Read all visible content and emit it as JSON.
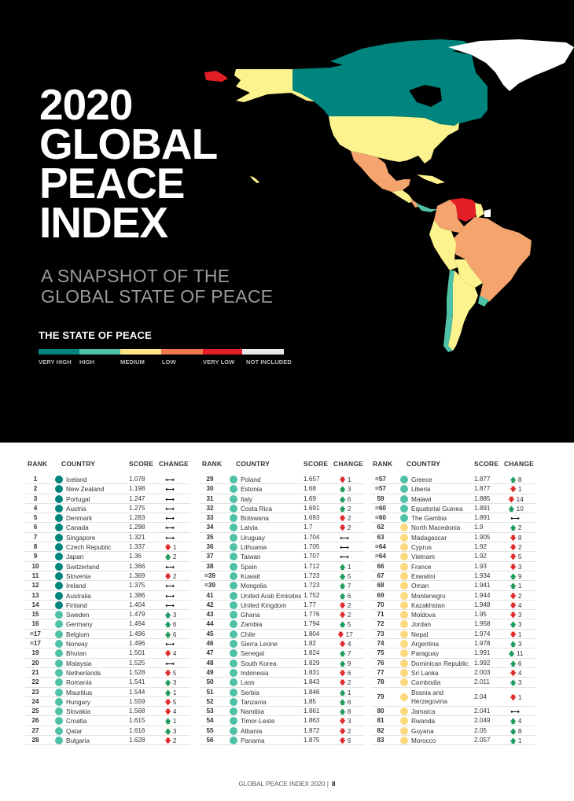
{
  "header": {
    "title_lines": [
      "2020",
      "GLOBAL",
      "PEACE",
      "INDEX"
    ],
    "subtitle_lines": [
      "A SNAPSHOT OF THE",
      "GLOBAL STATE OF PEACE"
    ]
  },
  "legend": {
    "title": "THE STATE OF PEACE",
    "items": [
      {
        "label": "VERY HIGH",
        "color": "#00857e"
      },
      {
        "label": "HIGH",
        "color": "#4fc1a6"
      },
      {
        "label": "MEDIUM",
        "color": "#fde586"
      },
      {
        "label": "LOW",
        "color": "#f4784f"
      },
      {
        "label": "VERY LOW",
        "color": "#e21f26"
      },
      {
        "label": "NOT INCLUDED",
        "color": "#e8e8e8"
      }
    ]
  },
  "colors": {
    "very_high": "#00857e",
    "high": "#4fc1a6",
    "medium": "#fbd97c",
    "low": "#f4a46c",
    "very_low": "#e21f26",
    "not_included": "#ffffff",
    "arrow_up": "#1e9a5c",
    "arrow_down": "#e0292a"
  },
  "table": {
    "headers": {
      "rank": "RANK",
      "country": "COUNTRY",
      "score": "SCORE",
      "change": "CHANGE"
    },
    "columns": [
      [
        {
          "rank": "1",
          "country": "Iceland",
          "score": "1.078",
          "dir": "flat",
          "change": ""
        },
        {
          "rank": "2",
          "country": "New Zealand",
          "score": "1.198",
          "dir": "flat",
          "change": ""
        },
        {
          "rank": "3",
          "country": "Portugal",
          "score": "1.247",
          "dir": "flat",
          "change": ""
        },
        {
          "rank": "4",
          "country": "Austria",
          "score": "1.275",
          "dir": "flat",
          "change": ""
        },
        {
          "rank": "5",
          "country": "Denmark",
          "score": "1.283",
          "dir": "flat",
          "change": ""
        },
        {
          "rank": "6",
          "country": "Canada",
          "score": "1.298",
          "dir": "flat",
          "change": ""
        },
        {
          "rank": "7",
          "country": "Singapore",
          "score": "1.321",
          "dir": "flat",
          "change": ""
        },
        {
          "rank": "8",
          "country": "Czech Republic",
          "score": "1.337",
          "dir": "down",
          "change": "1"
        },
        {
          "rank": "9",
          "country": "Japan",
          "score": "1.36",
          "dir": "up",
          "change": "2"
        },
        {
          "rank": "10",
          "country": "Switzerland",
          "score": "1.366",
          "dir": "flat",
          "change": ""
        },
        {
          "rank": "11",
          "country": "Slovenia",
          "score": "1.369",
          "dir": "down",
          "change": "2"
        },
        {
          "rank": "12",
          "country": "Ireland",
          "score": "1.375",
          "dir": "flat",
          "change": ""
        },
        {
          "rank": "13",
          "country": "Australia",
          "score": "1.386",
          "dir": "flat",
          "change": ""
        },
        {
          "rank": "14",
          "country": "Finland",
          "score": "1.404",
          "dir": "flat",
          "change": ""
        },
        {
          "rank": "15",
          "country": "Sweden",
          "score": "1.479",
          "dir": "up",
          "change": "3"
        },
        {
          "rank": "16",
          "country": "Germany",
          "score": "1.494",
          "dir": "up",
          "change": "6"
        },
        {
          "rank": "=17",
          "country": "Belgium",
          "score": "1.496",
          "dir": "up",
          "change": "6"
        },
        {
          "rank": "=17",
          "country": "Norway",
          "score": "1.496",
          "dir": "flat",
          "change": ""
        },
        {
          "rank": "19",
          "country": "Bhutan",
          "score": "1.501",
          "dir": "down",
          "change": "4"
        },
        {
          "rank": "20",
          "country": "Malaysia",
          "score": "1.525",
          "dir": "flat",
          "change": ""
        },
        {
          "rank": "21",
          "country": "Netherlands",
          "score": "1.528",
          "dir": "down",
          "change": "5"
        },
        {
          "rank": "22",
          "country": "Romania",
          "score": "1.541",
          "dir": "up",
          "change": "3"
        },
        {
          "rank": "23",
          "country": "Mauritius",
          "score": "1.544",
          "dir": "up",
          "change": "1"
        },
        {
          "rank": "24",
          "country": "Hungary",
          "score": "1.559",
          "dir": "down",
          "change": "5"
        },
        {
          "rank": "25",
          "country": "Slovakia",
          "score": "1.568",
          "dir": "down",
          "change": "4"
        },
        {
          "rank": "26",
          "country": "Croatia",
          "score": "1.615",
          "dir": "up",
          "change": "1"
        },
        {
          "rank": "27",
          "country": "Qatar",
          "score": "1.616",
          "dir": "up",
          "change": "3"
        },
        {
          "rank": "28",
          "country": "Bulgaria",
          "score": "1.628",
          "dir": "down",
          "change": "2"
        }
      ],
      [
        {
          "rank": "29",
          "country": "Poland",
          "score": "1.657",
          "dir": "down",
          "change": "1"
        },
        {
          "rank": "30",
          "country": "Estonia",
          "score": "1.68",
          "dir": "up",
          "change": "3"
        },
        {
          "rank": "31",
          "country": "Italy",
          "score": "1.69",
          "dir": "up",
          "change": "6"
        },
        {
          "rank": "32",
          "country": "Costa Rica",
          "score": "1.691",
          "dir": "up",
          "change": "2"
        },
        {
          "rank": "33",
          "country": "Botswana",
          "score": "1.693",
          "dir": "down",
          "change": "2"
        },
        {
          "rank": "34",
          "country": "Latvia",
          "score": "1.7",
          "dir": "down",
          "change": "2"
        },
        {
          "rank": "35",
          "country": "Uruguay",
          "score": "1.704",
          "dir": "flat",
          "change": ""
        },
        {
          "rank": "36",
          "country": "Lithuania",
          "score": "1.705",
          "dir": "flat",
          "change": ""
        },
        {
          "rank": "37",
          "country": "Taiwan",
          "score": "1.707",
          "dir": "flat",
          "change": ""
        },
        {
          "rank": "38",
          "country": "Spain",
          "score": "1.712",
          "dir": "up",
          "change": "1"
        },
        {
          "rank": "=39",
          "country": "Kuwait",
          "score": "1.723",
          "dir": "up",
          "change": "5"
        },
        {
          "rank": "=39",
          "country": "Mongolia",
          "score": "1.723",
          "dir": "up",
          "change": "7"
        },
        {
          "rank": "41",
          "country": "United Arab Emirates",
          "score": "1.752",
          "dir": "up",
          "change": "6"
        },
        {
          "rank": "42",
          "country": "United Kingdom",
          "score": "1.77",
          "dir": "down",
          "change": "2"
        },
        {
          "rank": "43",
          "country": "Ghana",
          "score": "1.776",
          "dir": "down",
          "change": "2"
        },
        {
          "rank": "44",
          "country": "Zambia",
          "score": "1.794",
          "dir": "up",
          "change": "5"
        },
        {
          "rank": "45",
          "country": "Chile",
          "score": "1.804",
          "dir": "down",
          "change": "17"
        },
        {
          "rank": "46",
          "country": "Sierra Leone",
          "score": "1.82",
          "dir": "down",
          "change": "4"
        },
        {
          "rank": "47",
          "country": "Senegal",
          "score": "1.824",
          "dir": "up",
          "change": "7"
        },
        {
          "rank": "48",
          "country": "South Korea",
          "score": "1.829",
          "dir": "up",
          "change": "9"
        },
        {
          "rank": "49",
          "country": "Indonesia",
          "score": "1.831",
          "dir": "down",
          "change": "6"
        },
        {
          "rank": "50",
          "country": "Laos",
          "score": "1.843",
          "dir": "down",
          "change": "2"
        },
        {
          "rank": "51",
          "country": "Serbia",
          "score": "1.846",
          "dir": "up",
          "change": "1"
        },
        {
          "rank": "52",
          "country": "Tanzania",
          "score": "1.85",
          "dir": "up",
          "change": "6"
        },
        {
          "rank": "53",
          "country": "Namibia",
          "score": "1.861",
          "dir": "up",
          "change": "8"
        },
        {
          "rank": "54",
          "country": "Timor-Leste",
          "score": "1.863",
          "dir": "down",
          "change": "3"
        },
        {
          "rank": "55",
          "country": "Albania",
          "score": "1.872",
          "dir": "down",
          "change": "2"
        },
        {
          "rank": "56",
          "country": "Panama",
          "score": "1.875",
          "dir": "down",
          "change": "6"
        }
      ],
      [
        {
          "rank": "=57",
          "country": "Greece",
          "score": "1.877",
          "dir": "up",
          "change": "8",
          "level": "high"
        },
        {
          "rank": "=57",
          "country": "Liberia",
          "score": "1.877",
          "dir": "down",
          "change": "1",
          "level": "high"
        },
        {
          "rank": "59",
          "country": "Malawi",
          "score": "1.885",
          "dir": "down",
          "change": "14",
          "level": "high"
        },
        {
          "rank": "=60",
          "country": "Equatorial Guinea",
          "score": "1.891",
          "dir": "up",
          "change": "10",
          "level": "high"
        },
        {
          "rank": "=60",
          "country": "The Gambia",
          "score": "1.891",
          "dir": "flat",
          "change": "",
          "level": "high"
        },
        {
          "rank": "62",
          "country": "North Macedonia",
          "score": "1.9",
          "dir": "up",
          "change": "2",
          "level": "medium"
        },
        {
          "rank": "63",
          "country": "Madagascar",
          "score": "1.905",
          "dir": "down",
          "change": "8",
          "level": "medium"
        },
        {
          "rank": "=64",
          "country": "Cyprus",
          "score": "1.92",
          "dir": "down",
          "change": "2",
          "level": "medium"
        },
        {
          "rank": "=64",
          "country": "Vietnam",
          "score": "1.92",
          "dir": "down",
          "change": "5",
          "level": "medium"
        },
        {
          "rank": "66",
          "country": "France",
          "score": "1.93",
          "dir": "down",
          "change": "3",
          "level": "medium"
        },
        {
          "rank": "67",
          "country": "Eswatini",
          "score": "1.934",
          "dir": "up",
          "change": "9",
          "level": "medium"
        },
        {
          "rank": "68",
          "country": "Oman",
          "score": "1.941",
          "dir": "up",
          "change": "1",
          "level": "medium"
        },
        {
          "rank": "69",
          "country": "Montenegro",
          "score": "1.944",
          "dir": "down",
          "change": "2",
          "level": "medium"
        },
        {
          "rank": "70",
          "country": "Kazakhstan",
          "score": "1.948",
          "dir": "down",
          "change": "4",
          "level": "medium"
        },
        {
          "rank": "71",
          "country": "Moldova",
          "score": "1.95",
          "dir": "down",
          "change": "3",
          "level": "medium"
        },
        {
          "rank": "72",
          "country": "Jordan",
          "score": "1.958",
          "dir": "up",
          "change": "3",
          "level": "medium"
        },
        {
          "rank": "73",
          "country": "Nepal",
          "score": "1.974",
          "dir": "down",
          "change": "1",
          "level": "medium"
        },
        {
          "rank": "74",
          "country": "Argentina",
          "score": "1.978",
          "dir": "up",
          "change": "3",
          "level": "medium"
        },
        {
          "rank": "75",
          "country": "Paraguay",
          "score": "1.991",
          "dir": "up",
          "change": "11",
          "level": "medium"
        },
        {
          "rank": "76",
          "country": "Dominican Republic",
          "score": "1.992",
          "dir": "up",
          "change": "6",
          "level": "medium"
        },
        {
          "rank": "77",
          "country": "Sri Lanka",
          "score": "2.003",
          "dir": "down",
          "change": "4",
          "level": "medium"
        },
        {
          "rank": "78",
          "country": "Cambodia",
          "score": "2.011",
          "dir": "up",
          "change": "3",
          "level": "medium"
        },
        {
          "rank": "79",
          "country": "Bosnia and Herzegovina",
          "score": "2.04",
          "dir": "down",
          "change": "1",
          "level": "medium",
          "tall": true
        },
        {
          "rank": "80",
          "country": "Jamaica",
          "score": "2.041",
          "dir": "flat",
          "change": "",
          "level": "medium"
        },
        {
          "rank": "81",
          "country": "Rwanda",
          "score": "2.049",
          "dir": "up",
          "change": "4",
          "level": "medium"
        },
        {
          "rank": "82",
          "country": "Guyana",
          "score": "2.05",
          "dir": "up",
          "change": "8",
          "level": "medium"
        },
        {
          "rank": "83",
          "country": "Morocco",
          "score": "2.057",
          "dir": "up",
          "change": "1",
          "level": "medium"
        }
      ]
    ]
  },
  "icons": {
    "up": "🡅",
    "down": "🡇",
    "flat": "⟷"
  },
  "footer": {
    "text": "GLOBAL PEACE INDEX 2020  |",
    "page": "8"
  }
}
